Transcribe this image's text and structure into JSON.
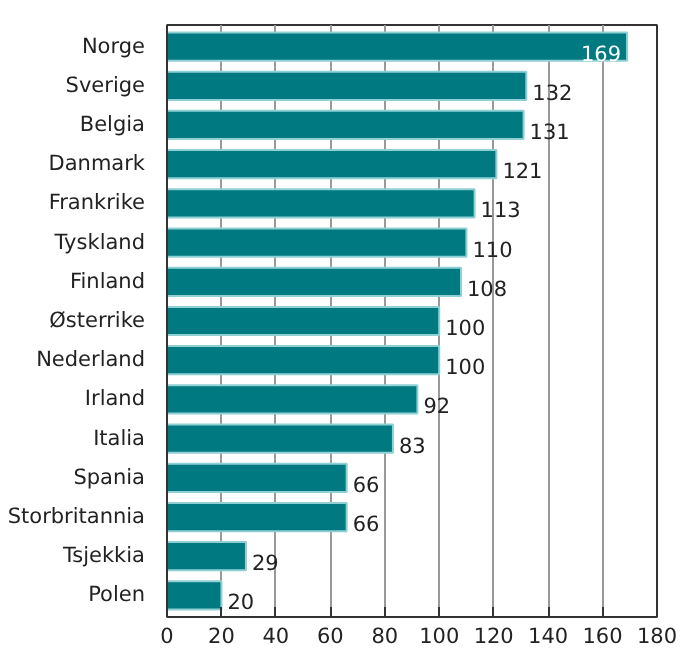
{
  "chart_data": {
    "type": "bar",
    "orientation": "horizontal",
    "categories": [
      "Norge",
      "Sverige",
      "Belgia",
      "Danmark",
      "Frankrike",
      "Tyskland",
      "Finland",
      "Østerrike",
      "Nederland",
      "Irland",
      "Italia",
      "Spania",
      "Storbritannia",
      "Tsjekkia",
      "Polen"
    ],
    "values": [
      169,
      132,
      131,
      121,
      113,
      110,
      108,
      100,
      100,
      92,
      83,
      66,
      66,
      29,
      20
    ],
    "color": "#007a80",
    "xlim": [
      0,
      180
    ],
    "xticks": [
      0,
      20,
      40,
      60,
      80,
      100,
      120,
      140,
      160,
      180
    ],
    "grid": "x",
    "data_labels": true
  }
}
